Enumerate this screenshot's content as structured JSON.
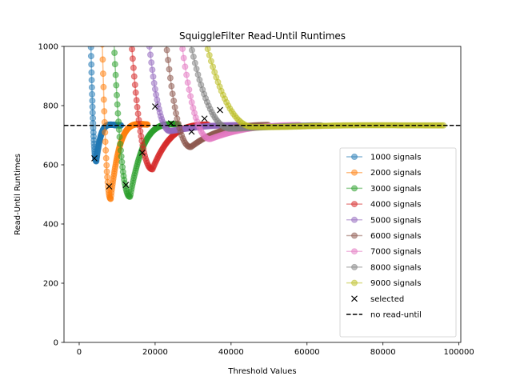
{
  "chart_data": {
    "type": "line",
    "title": "SquiggleFilter Read-Until Runtimes",
    "xlabel": "Threshold Values",
    "ylabel": "Read-Until Runtimes",
    "xlim": [
      -4000,
      100500
    ],
    "ylim": [
      0,
      1000
    ],
    "xticks": [
      0,
      20000,
      40000,
      60000,
      80000,
      100000
    ],
    "yticks": [
      0,
      200,
      400,
      600,
      800,
      1000
    ],
    "legend_position": "lower-right",
    "baseline": {
      "name": "no read-until",
      "value": 733,
      "style": "dashed",
      "color": "#000000"
    },
    "series": [
      {
        "name": "1000 signals",
        "color": "#1f77b4",
        "n": 1000,
        "start": 3000,
        "end": 11000,
        "min_x": 4500,
        "min_y": 612,
        "selected": [
          4000,
          622
        ]
      },
      {
        "name": "2000 signals",
        "color": "#ff7f0e",
        "n": 2000,
        "start": 6000,
        "end": 18000,
        "min_x": 8300,
        "min_y": 485,
        "selected": [
          7900,
          527
        ]
      },
      {
        "name": "3000 signals",
        "color": "#2ca02c",
        "n": 3000,
        "start": 9000,
        "end": 26000,
        "min_x": 13400,
        "min_y": 492,
        "selected": [
          12300,
          532
        ]
      },
      {
        "name": "4000 signals",
        "color": "#d62728",
        "n": 4000,
        "start": 13500,
        "end": 34000,
        "min_x": 19300,
        "min_y": 585,
        "selected": [
          16600,
          641
        ]
      },
      {
        "name": "5000 signals",
        "color": "#9467bd",
        "n": 5000,
        "start": 18000,
        "end": 42000,
        "min_x": 24000,
        "min_y": 714,
        "selected": [
          20000,
          797
        ]
      },
      {
        "name": "6000 signals",
        "color": "#8c564b",
        "n": 6000,
        "start": 22500,
        "end": 50000,
        "min_x": 29400,
        "min_y": 660,
        "selected": [
          24200,
          740
        ]
      },
      {
        "name": "7000 signals",
        "color": "#e377c2",
        "n": 7000,
        "start": 26500,
        "end": 58000,
        "min_x": 34500,
        "min_y": 687,
        "selected": [
          29600,
          712
        ]
      },
      {
        "name": "8000 signals",
        "color": "#7f7f7f",
        "n": 8000,
        "start": 28500,
        "end": 64000,
        "min_x": 40000,
        "min_y": 722,
        "selected": [
          33000,
          756
        ]
      },
      {
        "name": "9000 signals",
        "color": "#bcbd22",
        "n": 9000,
        "start": 32500,
        "end": 96000,
        "min_x": 46000,
        "min_y": 728,
        "selected": [
          37100,
          785
        ]
      }
    ],
    "selected_marker": {
      "name": "selected",
      "marker": "x",
      "color": "#000000"
    }
  }
}
